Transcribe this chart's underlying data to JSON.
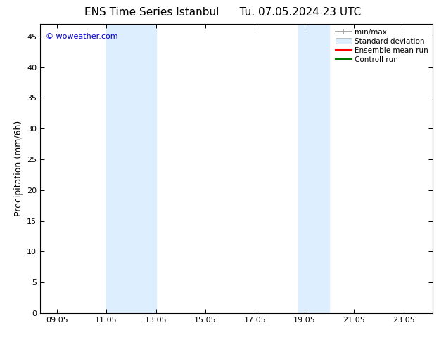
{
  "title_left": "ENS Time Series Istanbul",
  "title_right": "Tu. 07.05.2024 23 UTC",
  "ylabel": "Precipitation (mm/6h)",
  "background_color": "#ffffff",
  "plot_bg_color": "#ffffff",
  "shaded_band_color": "#ddeeff",
  "xlim_start": 8.33,
  "xlim_end": 24.17,
  "ylim": [
    0,
    47
  ],
  "yticks": [
    0,
    5,
    10,
    15,
    20,
    25,
    30,
    35,
    40,
    45
  ],
  "xtick_labels": [
    "09.05",
    "11.05",
    "13.05",
    "15.05",
    "17.05",
    "19.05",
    "21.05",
    "23.05"
  ],
  "xtick_positions": [
    9,
    11,
    13,
    15,
    17,
    19,
    21,
    23
  ],
  "shaded_bands": [
    {
      "x_start": 11.0,
      "x_end": 13.0
    },
    {
      "x_start": 18.75,
      "x_end": 20.0
    }
  ],
  "watermark_text": "© woweather.com",
  "watermark_color": "#0000cc",
  "legend_items": [
    {
      "label": "min/max",
      "type": "errorbar",
      "color": "#999999",
      "lw": 1.2
    },
    {
      "label": "Standard deviation",
      "type": "patch",
      "color": "#ddeeff",
      "edgecolor": "#aaaaaa"
    },
    {
      "label": "Ensemble mean run",
      "type": "line",
      "color": "#ff0000",
      "lw": 1.5
    },
    {
      "label": "Controll run",
      "type": "line",
      "color": "#007700",
      "lw": 1.5
    }
  ],
  "title_fontsize": 11,
  "ylabel_fontsize": 9,
  "tick_fontsize": 8,
  "watermark_fontsize": 8,
  "legend_fontsize": 7.5
}
